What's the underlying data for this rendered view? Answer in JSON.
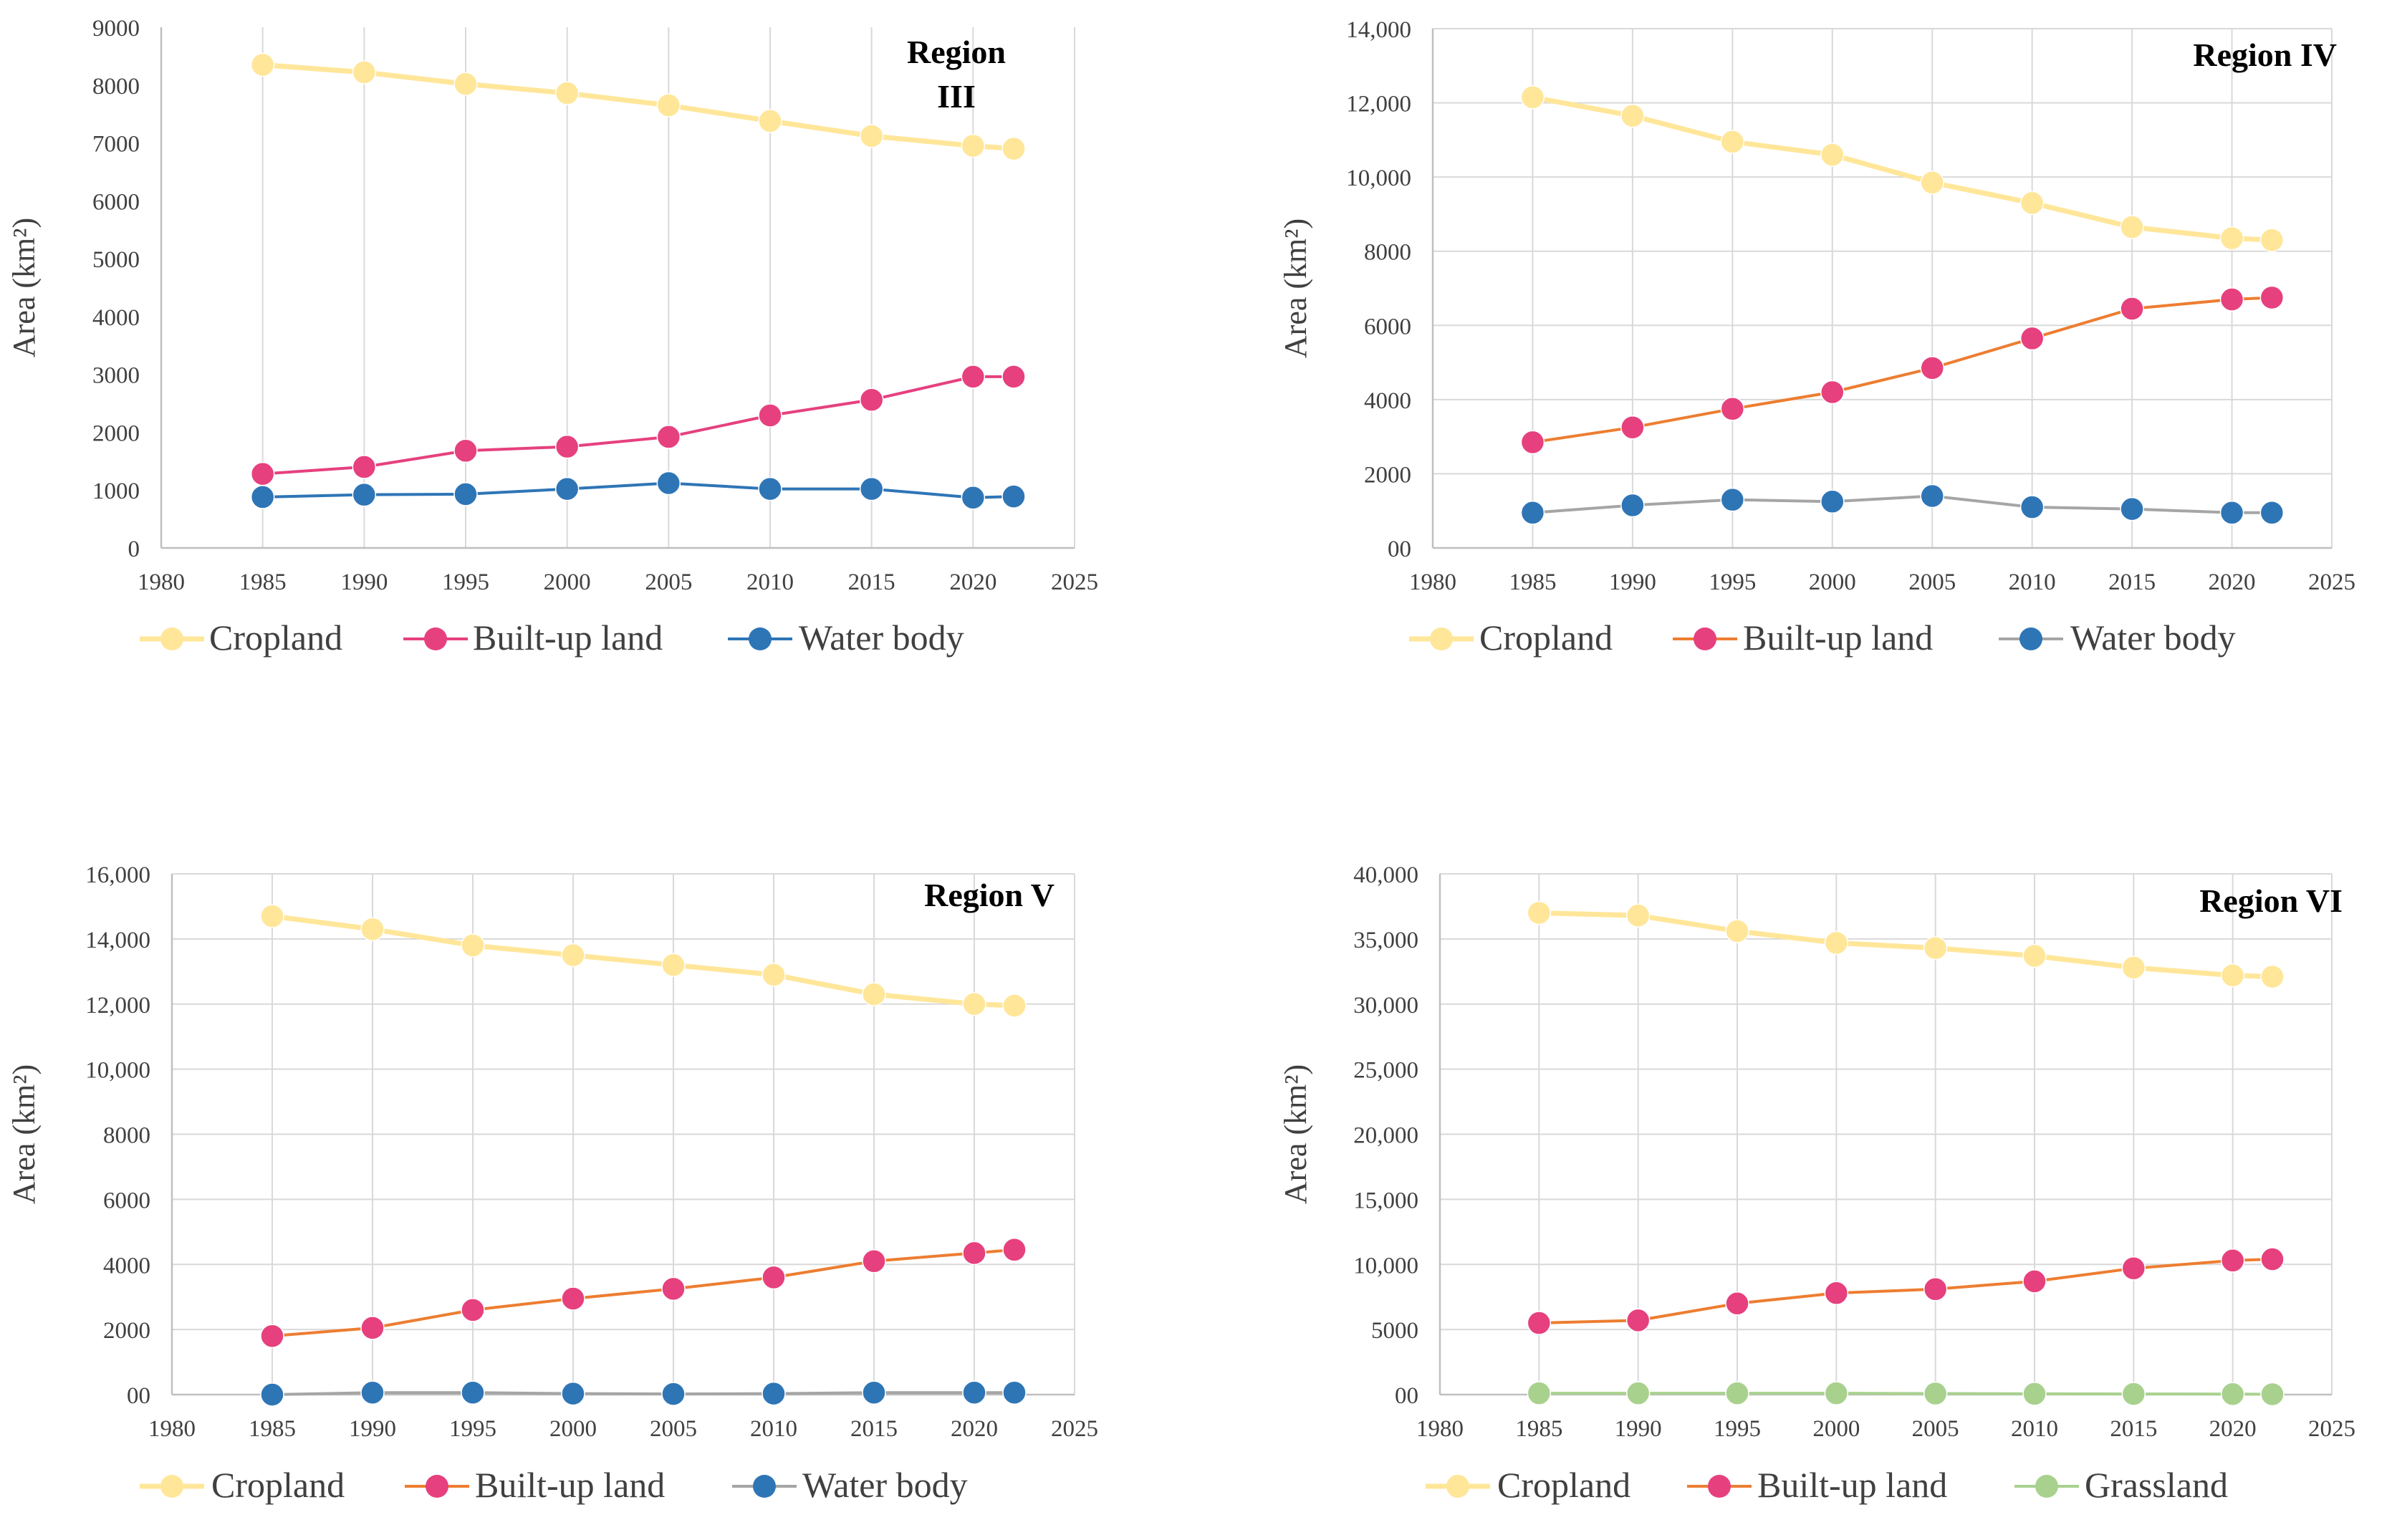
{
  "figure": {
    "chart_data": [
      {
        "type": "line",
        "title": "Region III",
        "title_lines": [
          "Region",
          "III"
        ],
        "ylabel": "Area (km²)",
        "xlabel": "",
        "x": [
          1985,
          1990,
          1995,
          2000,
          2005,
          2010,
          2015,
          2020,
          2022
        ],
        "xlim": [
          1980,
          2025
        ],
        "xticks": [
          1980,
          1985,
          1990,
          1995,
          2000,
          2005,
          2010,
          2015,
          2020,
          2025
        ],
        "xtick_labels": [
          "1980",
          "1985",
          "1990",
          "1995",
          "2000",
          "2005",
          "2010",
          "2015",
          "2020",
          "2025"
        ],
        "ylim": [
          0,
          9000
        ],
        "yticks": [
          0,
          1000,
          2000,
          3000,
          4000,
          5000,
          6000,
          7000,
          8000,
          9000
        ],
        "ytick_labels": [
          "0",
          "1000",
          "2000",
          "3000",
          "4000",
          "5000",
          "6000",
          "7000",
          "8000",
          "9000"
        ],
        "grid": "vertical",
        "legend_position": "bottom",
        "series": [
          {
            "name": "Cropland",
            "line_color": "#FFE699",
            "marker_color": "#FFE699",
            "values": [
              8350,
              8220,
              8020,
              7860,
              7650,
              7380,
              7120,
              6950,
              6900
            ]
          },
          {
            "name": "Built-up land",
            "line_color": "#E6407F",
            "marker_color": "#E6407F",
            "values": [
              1280,
              1400,
              1680,
              1750,
              1920,
              2290,
              2560,
              2960,
              2960
            ]
          },
          {
            "name": "Water body",
            "line_color": "#2E75B6",
            "marker_color": "#2E75B6",
            "values": [
              880,
              920,
              930,
              1020,
              1120,
              1020,
              1020,
              870,
              890
            ]
          }
        ]
      },
      {
        "type": "line",
        "title": "Region IV",
        "title_lines": [
          "Region IV"
        ],
        "ylabel": "Area (km²)",
        "xlabel": "",
        "x": [
          1985,
          1990,
          1995,
          2000,
          2005,
          2010,
          2015,
          2020,
          2022
        ],
        "xlim": [
          1980,
          2025
        ],
        "xticks": [
          1980,
          1985,
          1990,
          1995,
          2000,
          2005,
          2010,
          2015,
          2020,
          2025
        ],
        "xtick_labels": [
          "1980",
          "1985",
          "1990",
          "1995",
          "2000",
          "2005",
          "2010",
          "2015",
          "2020",
          "2025"
        ],
        "ylim": [
          0,
          14000
        ],
        "yticks": [
          0,
          2000,
          4000,
          6000,
          8000,
          10000,
          12000,
          14000
        ],
        "ytick_labels": [
          "00",
          "2000",
          "4000",
          "6000",
          "8000",
          "10,000",
          "12,000",
          "14,000"
        ],
        "grid": "both",
        "legend_position": "bottom",
        "series": [
          {
            "name": "Cropland",
            "line_color": "#FFE699",
            "marker_color": "#FFE699",
            "values": [
              12150,
              11650,
              10950,
              10600,
              9850,
              9300,
              8650,
              8350,
              8300
            ]
          },
          {
            "name": "Built-up land",
            "line_color": "#ED7D31",
            "marker_color": "#E6407F",
            "values": [
              2850,
              3250,
              3750,
              4200,
              4850,
              5650,
              6450,
              6700,
              6750
            ]
          },
          {
            "name": "Water body",
            "line_color": "#A5A5A5",
            "marker_color": "#2E75B6",
            "values": [
              950,
              1150,
              1300,
              1250,
              1400,
              1100,
              1050,
              950,
              950
            ]
          }
        ]
      },
      {
        "type": "line",
        "title": "Region V",
        "title_lines": [
          "Region V"
        ],
        "ylabel": "Area (km²)",
        "xlabel": "",
        "x": [
          1985,
          1990,
          1995,
          2000,
          2005,
          2010,
          2015,
          2020,
          2022
        ],
        "xlim": [
          1980,
          2025
        ],
        "xticks": [
          1980,
          1985,
          1990,
          1995,
          2000,
          2005,
          2010,
          2015,
          2020,
          2025
        ],
        "xtick_labels": [
          "1980",
          "1985",
          "1990",
          "1995",
          "2000",
          "2005",
          "2010",
          "2015",
          "2020",
          "2025"
        ],
        "ylim": [
          0,
          16000
        ],
        "yticks": [
          0,
          2000,
          4000,
          6000,
          8000,
          10000,
          12000,
          14000,
          16000
        ],
        "ytick_labels": [
          "00",
          "2000",
          "4000",
          "6000",
          "8000",
          "10,000",
          "12,000",
          "14,000",
          "16,000"
        ],
        "grid": "both",
        "legend_position": "bottom",
        "series": [
          {
            "name": "Cropland",
            "line_color": "#FFE699",
            "marker_color": "#FFE699",
            "values": [
              14700,
              14300,
              13800,
              13500,
              13200,
              12900,
              12300,
              12000,
              11950
            ]
          },
          {
            "name": "Built-up land",
            "line_color": "#ED7D31",
            "marker_color": "#E6407F",
            "values": [
              1800,
              2050,
              2600,
              2950,
              3250,
              3600,
              4100,
              4350,
              4450
            ]
          },
          {
            "name": "Water body",
            "line_color": "#A5A5A5",
            "marker_color": "#2E75B6",
            "values": [
              0,
              60,
              60,
              30,
              20,
              30,
              60,
              60,
              60
            ]
          }
        ]
      },
      {
        "type": "line",
        "title": "Region VI",
        "title_lines": [
          "Region VI"
        ],
        "ylabel": "Area (km²)",
        "xlabel": "",
        "x": [
          1985,
          1990,
          1995,
          2000,
          2005,
          2010,
          2015,
          2020,
          2022
        ],
        "xlim": [
          1980,
          2025
        ],
        "xticks": [
          1980,
          1985,
          1990,
          1995,
          2000,
          2005,
          2010,
          2015,
          2020,
          2025
        ],
        "xtick_labels": [
          "1980",
          "1985",
          "1990",
          "1995",
          "2000",
          "2005",
          "2010",
          "2015",
          "2020",
          "2025"
        ],
        "ylim": [
          0,
          40000
        ],
        "yticks": [
          0,
          5000,
          10000,
          15000,
          20000,
          25000,
          30000,
          35000,
          40000
        ],
        "ytick_labels": [
          "00",
          "5000",
          "10,000",
          "15,000",
          "20,000",
          "25,000",
          "30,000",
          "35,000",
          "40,000"
        ],
        "grid": "both",
        "legend_position": "bottom",
        "series": [
          {
            "name": "Cropland",
            "line_color": "#FFE699",
            "marker_color": "#FFE699",
            "values": [
              37000,
              36800,
              35600,
              34700,
              34300,
              33700,
              32800,
              32200,
              32100
            ]
          },
          {
            "name": "Built-up land",
            "line_color": "#ED7D31",
            "marker_color": "#E6407F",
            "values": [
              5500,
              5700,
              7000,
              7800,
              8100,
              8700,
              9700,
              10300,
              10400
            ]
          },
          {
            "name": "Grassland",
            "line_color": "#A9D18E",
            "marker_color": "#A9D18E",
            "values": [
              100,
              100,
              100,
              100,
              80,
              60,
              50,
              40,
              30
            ]
          }
        ]
      }
    ]
  }
}
